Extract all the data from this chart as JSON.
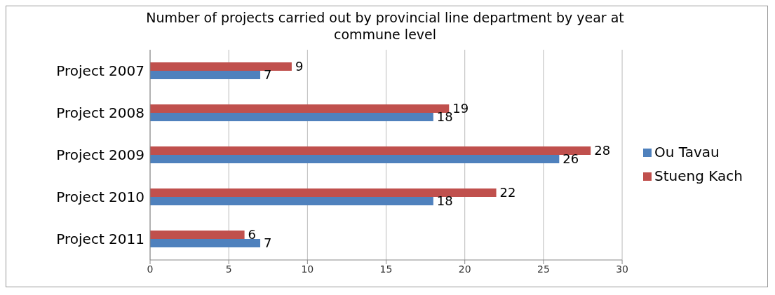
{
  "chart_data": {
    "type": "bar",
    "orientation": "horizontal",
    "title": "Number of projects carried out by provincial line department by year at commune level",
    "categories": [
      "Project 2007",
      "Project 2008",
      "Project 2009",
      "Project 2010",
      "Project 2011"
    ],
    "series": [
      {
        "name": "Stueng Kach",
        "color": "#c0504d",
        "values": [
          9,
          19,
          28,
          22,
          6
        ]
      },
      {
        "name": "Ou Tavau",
        "color": "#4f81bd",
        "values": [
          7,
          18,
          26,
          18,
          7
        ]
      }
    ],
    "xlim": [
      0,
      30
    ],
    "xticks": [
      0,
      5,
      10,
      15,
      20,
      25,
      30
    ],
    "grid": "x",
    "legend": "right",
    "data_labels": true
  }
}
